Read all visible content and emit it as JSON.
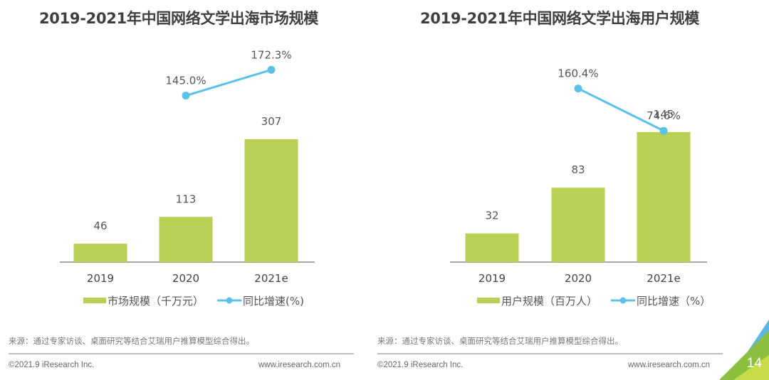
{
  "chart_data": [
    {
      "type": "bar",
      "title": "2019-2021年中国网络文学出海市场规模",
      "categories": [
        "2019",
        "2020",
        "2021e"
      ],
      "series": [
        {
          "name": "市场规模（千万元）",
          "kind": "bar",
          "values": [
            46,
            113,
            307
          ],
          "labels": [
            "46",
            "113",
            "307"
          ],
          "color": "#b8d155"
        },
        {
          "name": "同比增速(%)",
          "kind": "line",
          "values": [
            null,
            145.0,
            172.3
          ],
          "labels": [
            "",
            "145.0%",
            "172.3%"
          ],
          "color": "#5bc1ea"
        }
      ],
      "xlabel": "",
      "ylabel": "",
      "ylim": [
        0,
        307
      ],
      "line_ylim": [
        0,
        180
      ],
      "grid": false,
      "legend_position": "bottom"
    },
    {
      "type": "bar",
      "title": "2019-2021年中国网络文学出海用户规模",
      "categories": [
        "2019",
        "2020",
        "2021e"
      ],
      "series": [
        {
          "name": "用户规模（百万人）",
          "kind": "bar",
          "values": [
            32,
            83,
            145
          ],
          "labels": [
            "32",
            "83",
            "145"
          ],
          "color": "#b8d155"
        },
        {
          "name": "同比增速（%）",
          "kind": "line",
          "values": [
            null,
            160.4,
            74.6
          ],
          "labels": [
            "",
            "160.4%",
            "74.6%"
          ],
          "color": "#5bc1ea"
        }
      ],
      "xlabel": "",
      "ylabel": "",
      "ylim": [
        0,
        145
      ],
      "line_ylim": [
        0,
        180
      ],
      "grid": false,
      "legend_position": "bottom"
    }
  ],
  "left": {
    "title": "2019-2021年中国网络文学出海市场规模",
    "legend_bar": "市场规模（千万元）",
    "legend_line": "同比增速(%)",
    "source": "来源：通过专家访谈、桌面研究等结合艾瑞用户推算模型综合得出。",
    "copyright": "©2021.9 iResearch Inc.",
    "website": "www.iresearch.com.cn"
  },
  "right": {
    "title": "2019-2021年中国网络文学出海用户规模",
    "legend_bar": "用户规模（百万人）",
    "legend_line": "同比增速（%）",
    "source": "来源：通过专家访谈、桌面研究等结合艾瑞用户推算模型综合得出。",
    "copyright": "©2021.9 iResearch Inc.",
    "website": "www.iresearch.com.cn"
  },
  "page_number": "14",
  "colors": {
    "bar": "#b8d155",
    "line": "#5bc1ea",
    "corner_blue": "#5bb8e6",
    "corner_green": "#8dbf3f",
    "corner_lime": "#c8dc4a"
  }
}
